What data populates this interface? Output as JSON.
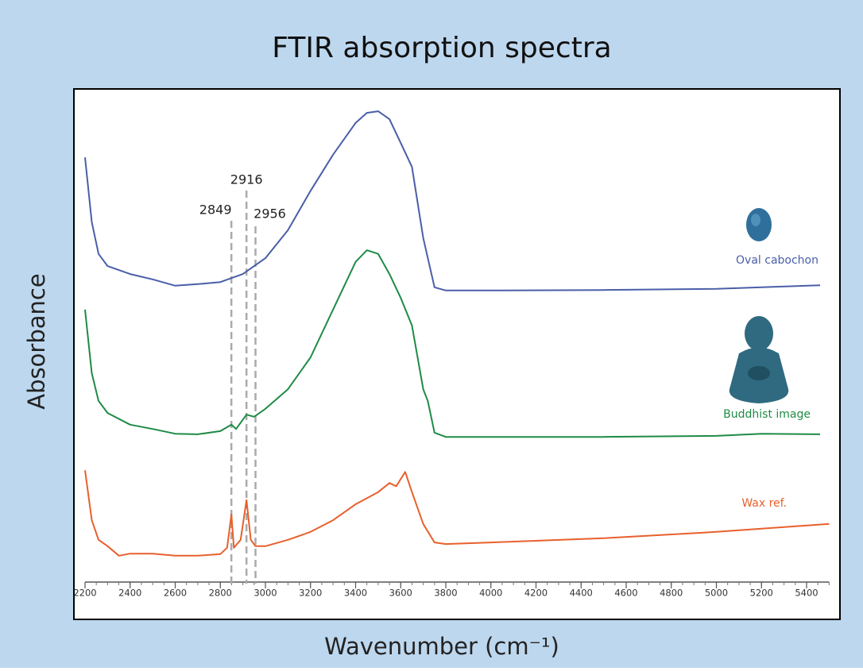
{
  "chart_data": {
    "type": "line",
    "title": "FTIR absorption spectra",
    "x_label": "Wavenumber (cm⁻¹)",
    "y_label": "Absorbance",
    "xlim": [
      2200,
      5500
    ],
    "ylim": [
      0,
      100
    ],
    "xticks": [
      2200,
      2400,
      2600,
      2800,
      3000,
      3200,
      3400,
      3600,
      3800,
      4000,
      4200,
      4400,
      4600,
      4800,
      5000,
      5200,
      5400
    ],
    "markers": [
      2849,
      2916,
      2956
    ],
    "series": [
      {
        "name": "Oval cabochon",
        "color": "#4a5ea8",
        "x": [
          2200,
          2230,
          2260,
          2300,
          2400,
          2500,
          2600,
          2700,
          2800,
          2900,
          3000,
          3100,
          3200,
          3300,
          3400,
          3450,
          3500,
          3550,
          3600,
          3650,
          3700,
          3750,
          3800,
          4000,
          4500,
          5000,
          5200,
          5460
        ],
        "values": [
          87.1,
          74.9,
          68.9,
          66.6,
          65.1,
          64.1,
          62.9,
          63.2,
          63.6,
          65.1,
          68.1,
          73.4,
          80.8,
          87.6,
          93.6,
          95.5,
          95.8,
          94.3,
          89.8,
          85.3,
          71.9,
          62.6,
          62.0,
          62.0,
          62.1,
          62.3,
          62.6,
          63.0
        ]
      },
      {
        "name": "Buddhist image",
        "color": "#1e8b45",
        "x": [
          2200,
          2230,
          2260,
          2300,
          2400,
          2500,
          2600,
          2700,
          2800,
          2849,
          2870,
          2916,
          2950,
          3000,
          3100,
          3200,
          3300,
          3400,
          3450,
          3500,
          3550,
          3600,
          3650,
          3700,
          3720,
          3750,
          3800,
          4000,
          4500,
          5000,
          5200,
          5460
        ],
        "values": [
          58.4,
          46.4,
          41.2,
          38.9,
          36.7,
          35.9,
          35.0,
          34.9,
          35.5,
          36.7,
          35.9,
          38.6,
          38.2,
          39.7,
          43.4,
          49.4,
          58.4,
          67.4,
          69.6,
          68.9,
          65.1,
          60.6,
          55.4,
          43.4,
          41.2,
          35.2,
          34.4,
          34.4,
          34.4,
          34.6,
          35.0,
          34.9
        ]
      },
      {
        "name": "Wax ref.",
        "color": "#e8602c",
        "x": [
          2200,
          2230,
          2260,
          2300,
          2350,
          2400,
          2500,
          2600,
          2700,
          2800,
          2830,
          2849,
          2860,
          2890,
          2916,
          2935,
          2956,
          3000,
          3100,
          3200,
          3300,
          3400,
          3500,
          3550,
          3580,
          3620,
          3650,
          3700,
          3750,
          3800,
          4000,
          4500,
          5000,
          5500
        ],
        "values": [
          28.1,
          18.7,
          15.0,
          13.8,
          12.0,
          12.4,
          12.4,
          12.0,
          12.0,
          12.3,
          13.5,
          19.8,
          13.5,
          15.0,
          22.5,
          15.0,
          13.8,
          13.8,
          15.0,
          16.5,
          18.7,
          21.7,
          24.0,
          25.7,
          25.1,
          27.8,
          24.0,
          18.0,
          14.5,
          14.2,
          14.5,
          15.3,
          16.5,
          18.0
        ]
      }
    ]
  }
}
